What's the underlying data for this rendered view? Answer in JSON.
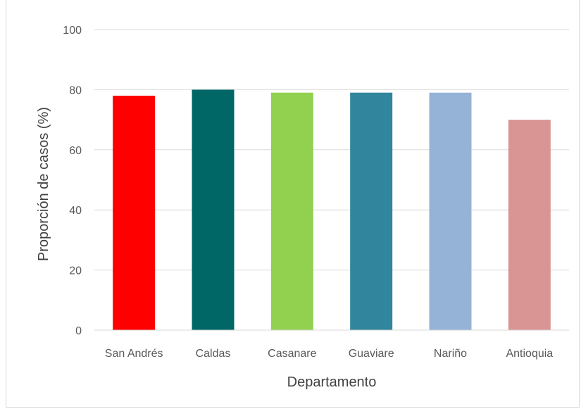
{
  "chart_data": {
    "type": "bar",
    "title": "",
    "xlabel": "Departamento",
    "ylabel": "Proporción de casos (%)",
    "categories": [
      "San Andrés",
      "Caldas",
      "Casanare",
      "Guaviare",
      "Nariño",
      "Antioquia"
    ],
    "values": [
      78,
      80,
      79,
      79,
      79,
      70
    ],
    "colors": [
      "#ff0000",
      "#006666",
      "#92d050",
      "#31859c",
      "#95b3d7",
      "#d99594"
    ],
    "ylim": [
      0,
      100
    ],
    "yticks": [
      0,
      20,
      40,
      60,
      80,
      100
    ],
    "grid": true,
    "legend": "none"
  }
}
